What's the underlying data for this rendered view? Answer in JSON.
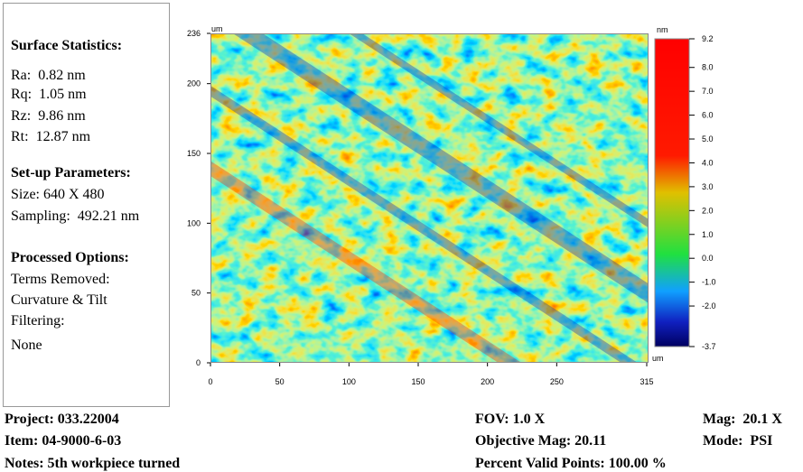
{
  "stats_panel": {
    "surface_title": "Surface Statistics:",
    "surface_items": [
      "Ra:  0.82 nm",
      "Rq:  1.05 nm",
      "Rz:  9.86 nm",
      "Rt:  12.87 nm"
    ],
    "setup_title": "Set-up Parameters:",
    "setup_items": [
      "Size: 640 X 480",
      "Sampling:  492.21 nm"
    ],
    "processed_title": "Processed Options:",
    "processed_items": [
      "Terms Removed:",
      "Curvature & Tilt",
      "Filtering:",
      "None"
    ]
  },
  "surface_map": {
    "x_unit": "um",
    "y_unit": "um",
    "xlim": [
      0,
      315
    ],
    "xticks": [
      0,
      50,
      100,
      150,
      200,
      250,
      315
    ],
    "ylim": [
      0,
      236
    ],
    "yticks": [
      0,
      50,
      100,
      150,
      200,
      236
    ]
  },
  "colorbar": {
    "unit": "nm",
    "lim": [
      -3.7,
      9.2
    ],
    "ticks": [
      9.2,
      {
        "value": 8,
        "label": "8.0"
      },
      {
        "value": 7,
        "label": "7.0"
      },
      {
        "value": 6,
        "label": "6.0"
      },
      {
        "value": 5,
        "label": "5.0"
      },
      {
        "value": 4,
        "label": "4.0"
      },
      {
        "value": 3,
        "label": "3.0"
      },
      {
        "value": 2,
        "label": "2.0"
      },
      {
        "value": 1,
        "label": "1.0"
      },
      {
        "value": 0,
        "label": "0.0"
      },
      {
        "value": -1,
        "label": "-1.0"
      },
      {
        "value": -2,
        "label": "-2.0"
      },
      -3.7
    ]
  },
  "footer": {
    "left": [
      "Project: 033.22004",
      "Item: 04-9000-6-03",
      "Notes: 5th workpiece turned"
    ],
    "middle": [
      "FOV: 1.0 X",
      "Objective Mag: 20.11",
      "Percent Valid Points: 100.00 %"
    ],
    "right": [
      "Mag:  20.1 X",
      "Mode:  PSI"
    ]
  }
}
